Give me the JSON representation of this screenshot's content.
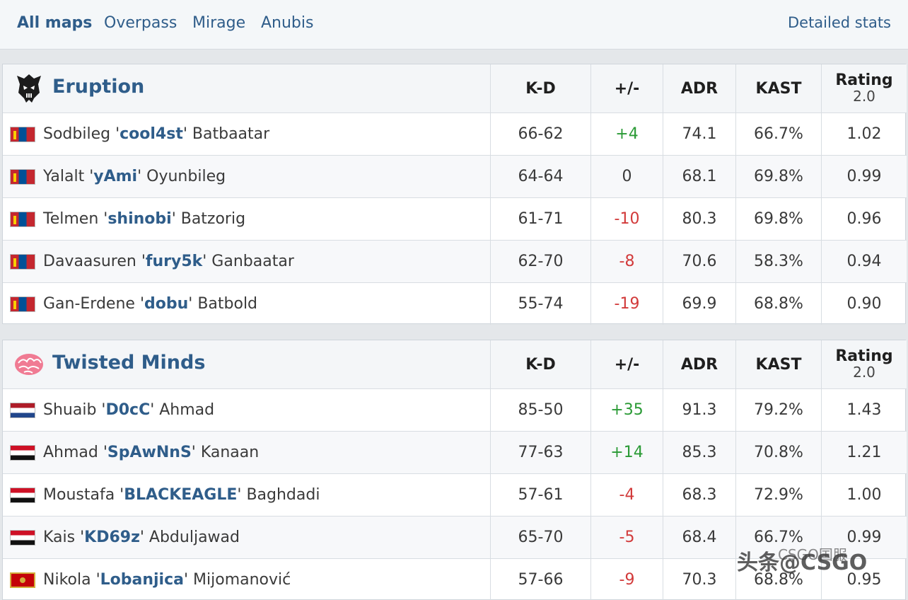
{
  "tabs": [
    {
      "label": "All maps",
      "active": true
    },
    {
      "label": "Overpass",
      "active": false
    },
    {
      "label": "Mirage",
      "active": false
    },
    {
      "label": "Anubis",
      "active": false
    }
  ],
  "detailed_stats_label": "Detailed stats",
  "columns": {
    "kd": "K-D",
    "pm": "+/-",
    "adr": "ADR",
    "kast": "KAST",
    "rating_line1": "Rating",
    "rating_line2": "2.0"
  },
  "teams": [
    {
      "name": "Eruption",
      "logo_icon": "eruption-logo-icon",
      "players": [
        {
          "flag": "mn",
          "first": "Sodbileg '",
          "nick": "cool4st",
          "last": "' Batbaatar",
          "kd": "66-62",
          "pm": "+4",
          "pm_sign": "pos",
          "adr": "74.1",
          "kast": "66.7%",
          "rating": "1.02"
        },
        {
          "flag": "mn",
          "first": "Yalalt '",
          "nick": "yAmi",
          "last": "' Oyunbileg",
          "kd": "64-64",
          "pm": "0",
          "pm_sign": "zero",
          "adr": "68.1",
          "kast": "69.8%",
          "rating": "0.99"
        },
        {
          "flag": "mn",
          "first": "Telmen '",
          "nick": "shinobi",
          "last": "' Batzorig",
          "kd": "61-71",
          "pm": "-10",
          "pm_sign": "neg",
          "adr": "80.3",
          "kast": "69.8%",
          "rating": "0.96"
        },
        {
          "flag": "mn",
          "first": "Davaasuren '",
          "nick": "fury5k",
          "last": "' Ganbaatar",
          "kd": "62-70",
          "pm": "-8",
          "pm_sign": "neg",
          "adr": "70.6",
          "kast": "58.3%",
          "rating": "0.94"
        },
        {
          "flag": "mn",
          "first": "Gan-Erdene '",
          "nick": "dobu",
          "last": "' Batbold",
          "kd": "55-74",
          "pm": "-19",
          "pm_sign": "neg",
          "adr": "69.9",
          "kast": "68.8%",
          "rating": "0.90"
        }
      ]
    },
    {
      "name": "Twisted Minds",
      "logo_icon": "twisted-minds-brain-logo-icon",
      "players": [
        {
          "flag": "nl",
          "first": "Shuaib '",
          "nick": "D0cC",
          "last": "' Ahmad",
          "kd": "85-50",
          "pm": "+35",
          "pm_sign": "pos",
          "adr": "91.3",
          "kast": "79.2%",
          "rating": "1.43"
        },
        {
          "flag": "ye",
          "first": "Ahmad '",
          "nick": "SpAwNnS",
          "last": "' Kanaan",
          "kd": "77-63",
          "pm": "+14",
          "pm_sign": "pos",
          "adr": "85.3",
          "kast": "70.8%",
          "rating": "1.21"
        },
        {
          "flag": "ye",
          "first": "Moustafa '",
          "nick": "BLACKEAGLE",
          "last": "' Baghdadi",
          "kd": "57-61",
          "pm": "-4",
          "pm_sign": "neg",
          "adr": "68.3",
          "kast": "72.9%",
          "rating": "1.00"
        },
        {
          "flag": "ye",
          "first": "Kais '",
          "nick": "KD69z",
          "last": "' Abduljawad",
          "kd": "65-70",
          "pm": "-5",
          "pm_sign": "neg",
          "adr": "68.4",
          "kast": "66.7%",
          "rating": "0.99"
        },
        {
          "flag": "me",
          "first": "Nikola '",
          "nick": "Lobanjica",
          "last": "' Mijomanović",
          "kd": "57-66",
          "pm": "-9",
          "pm_sign": "neg",
          "adr": "70.3",
          "kast": "68.8%",
          "rating": "0.95"
        }
      ]
    }
  ],
  "watermark": {
    "main": "头条@CSGO",
    "small": "CSGO国服"
  }
}
